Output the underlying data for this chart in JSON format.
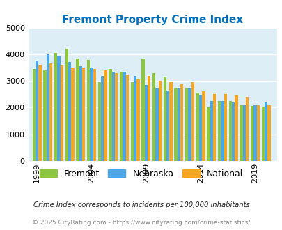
{
  "title": "Fremont Property Crime Index",
  "years": [
    1999,
    2000,
    2001,
    2002,
    2003,
    2004,
    2005,
    2006,
    2007,
    2008,
    2009,
    2010,
    2011,
    2012,
    2013,
    2014,
    2015,
    2016,
    2017,
    2018,
    2019,
    2020
  ],
  "fremont": [
    3450,
    3400,
    4050,
    4200,
    3850,
    3800,
    2950,
    3450,
    3350,
    2950,
    3850,
    3300,
    3150,
    2750,
    2750,
    2550,
    2000,
    2250,
    2250,
    2100,
    2060,
    2050
  ],
  "nebraska": [
    3750,
    4000,
    3950,
    3700,
    3550,
    3500,
    3200,
    3350,
    3350,
    3200,
    2850,
    2750,
    2650,
    2750,
    2750,
    2480,
    2250,
    2250,
    2200,
    2100,
    2080,
    2200
  ],
  "national": [
    3600,
    3650,
    3600,
    3500,
    3500,
    3450,
    3400,
    3300,
    3250,
    3050,
    3200,
    3000,
    2950,
    2900,
    2950,
    2600,
    2500,
    2500,
    2450,
    2400,
    2100,
    2100
  ],
  "fremont_color": "#8dc63f",
  "nebraska_color": "#4da6e8",
  "national_color": "#f5a623",
  "bg_color": "#ddeef6",
  "title_color": "#0070c0",
  "ylabel_max": 5000,
  "yticks": [
    0,
    1000,
    2000,
    3000,
    4000,
    5000
  ],
  "xtick_years": [
    1999,
    2004,
    2009,
    2014,
    2019
  ],
  "annotation1": "Crime Index corresponds to incidents per 100,000 inhabitants",
  "annotation2": "© 2025 CityRating.com - https://www.cityrating.com/crime-statistics/",
  "legend_labels": [
    "Fremont",
    "Nebraska",
    "National"
  ],
  "bar_width": 0.28,
  "figsize": [
    4.06,
    3.3
  ],
  "dpi": 100
}
